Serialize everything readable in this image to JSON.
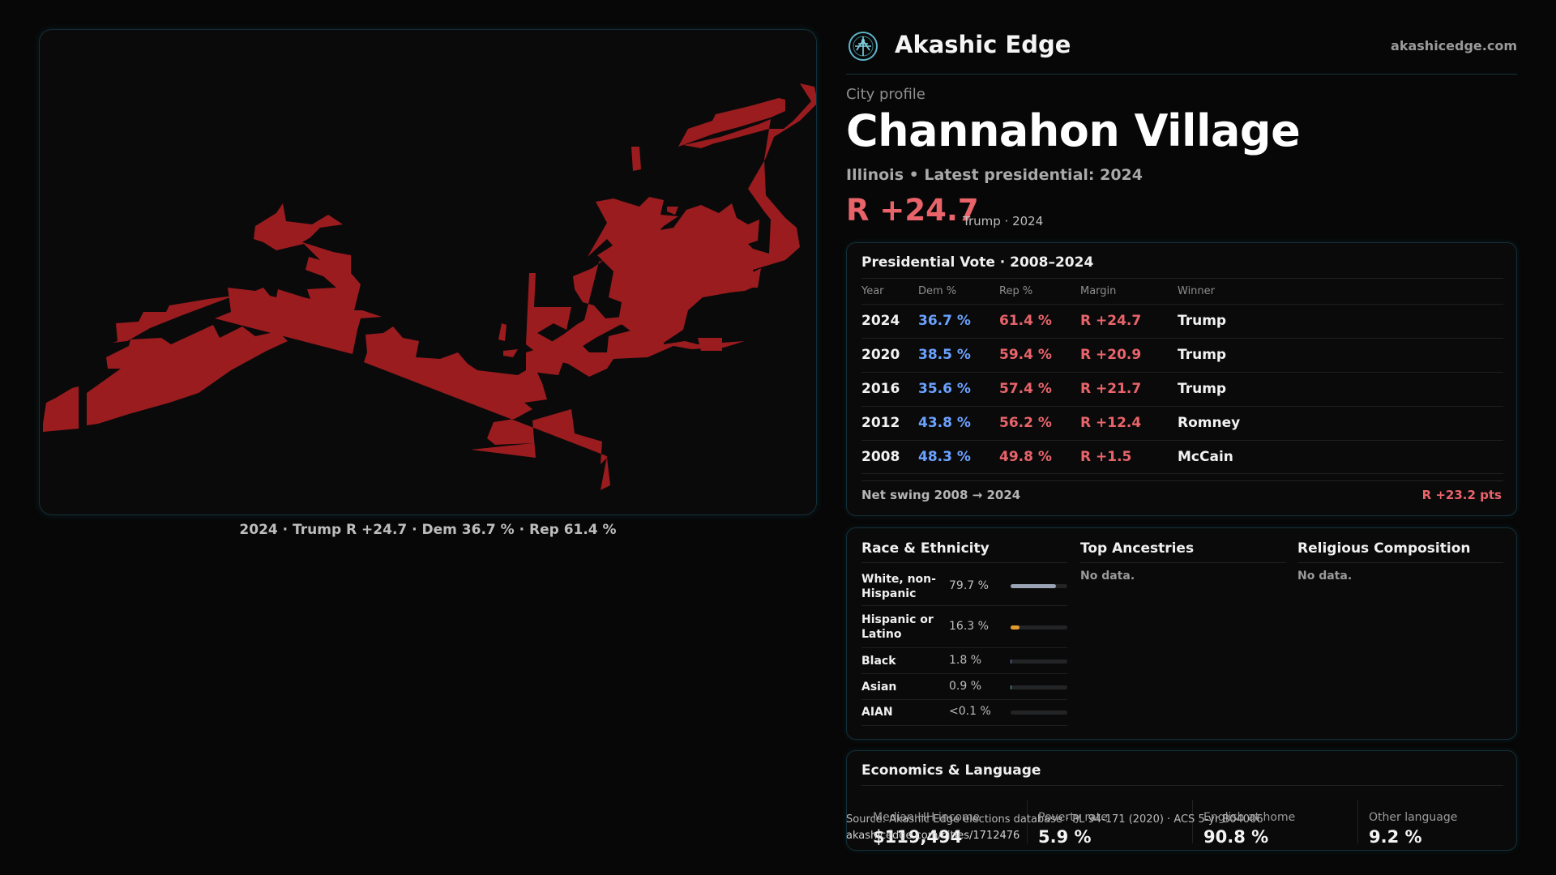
{
  "header": {
    "brand": "Akashic Edge",
    "domain": "akashicedge.com"
  },
  "profile": {
    "eyebrow": "City profile",
    "name": "Channahon Village",
    "subtitle": "Illinois • Latest presidential: 2024",
    "margin": "R +24.7",
    "margin_note": "Trump · 2024"
  },
  "map": {
    "caption": "2024 · Trump R +24.7 · Dem 36.7 % · Rep 61.4 %",
    "fill_color": "#9b1c1f"
  },
  "vote": {
    "title": "Presidential Vote · 2008–2024",
    "headers": [
      "Year",
      "Dem %",
      "Rep %",
      "Margin",
      "Winner"
    ],
    "rows": [
      {
        "year": "2024",
        "dem": "36.7 %",
        "rep": "61.4 %",
        "margin": "R +24.7",
        "winner": "Trump"
      },
      {
        "year": "2020",
        "dem": "38.5 %",
        "rep": "59.4 %",
        "margin": "R +20.9",
        "winner": "Trump"
      },
      {
        "year": "2016",
        "dem": "35.6 %",
        "rep": "57.4 %",
        "margin": "R +21.7",
        "winner": "Trump"
      },
      {
        "year": "2012",
        "dem": "43.8 %",
        "rep": "56.2 %",
        "margin": "R +12.4",
        "winner": "Romney"
      },
      {
        "year": "2008",
        "dem": "48.3 %",
        "rep": "49.8 %",
        "margin": "R +1.5",
        "winner": "McCain"
      }
    ],
    "swing_label": "Net swing 2008 → 2024",
    "swing_value": "R +23.2 pts"
  },
  "race": {
    "title": "Race & Ethnicity",
    "rows": [
      {
        "label": "White, non-Hispanic",
        "pct": "79.7 %",
        "fraction": 0.797,
        "color": "#9aa4b4"
      },
      {
        "label": "Hispanic or Latino",
        "pct": "16.3 %",
        "fraction": 0.163,
        "color": "#e39a2e"
      },
      {
        "label": "Black",
        "pct": "1.8 %",
        "fraction": 0.018,
        "color": "#6f7bd6"
      },
      {
        "label": "Asian",
        "pct": "0.9 %",
        "fraction": 0.009,
        "color": "#58b0a0"
      },
      {
        "label": "AIAN",
        "pct": "<0.1 %",
        "fraction": 0.0,
        "color": "#888888"
      }
    ]
  },
  "ancestries": {
    "title": "Top Ancestries",
    "empty": "No data."
  },
  "religion": {
    "title": "Religious Composition",
    "empty": "No data."
  },
  "economics": {
    "title": "Economics & Language",
    "items": [
      {
        "label": "Median HH income",
        "value": "$119,494"
      },
      {
        "label": "Poverty rate",
        "value": "5.9 %"
      },
      {
        "label": "English at home",
        "value": "90.8 %"
      },
      {
        "label": "Other language",
        "value": "9.2 %"
      }
    ]
  },
  "footer": {
    "source": "Source: Akashic Edge elections database · PL 94-171 (2020) · ACS 5-yr B04006",
    "url": "akashicedge.com/cities/1712476"
  }
}
